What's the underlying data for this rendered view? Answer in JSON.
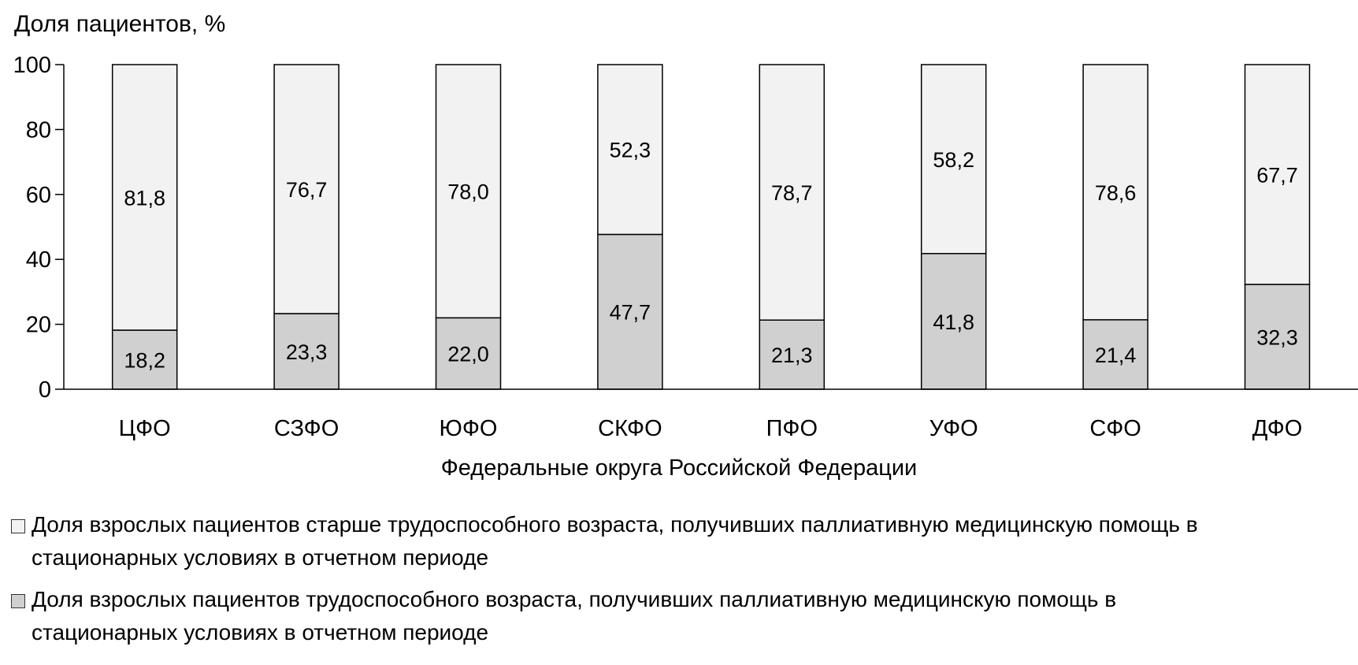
{
  "chart_data": {
    "type": "bar",
    "stacked": true,
    "ylabel": "Доля пациентов, %",
    "xlabel": "Федеральные округа Российской Федерации",
    "ylim": [
      0,
      100
    ],
    "yticks": [
      0,
      20,
      40,
      60,
      80,
      100
    ],
    "categories": [
      "ЦФО",
      "СЗФО",
      "ЮФО",
      "СКФО",
      "ПФО",
      "УФО",
      "СФО",
      "ДФО"
    ],
    "series": [
      {
        "name": "Доля взрослых пациентов трудоспособного возраста,  получивших паллиативную медицинскую помощь в стационарных условиях в отчетном периоде",
        "values": [
          18.2,
          23.3,
          22.0,
          47.7,
          21.3,
          41.8,
          21.4,
          32.3
        ],
        "labels": [
          "18,2",
          "23,3",
          "22,0",
          "47,7",
          "21,3",
          "41,8",
          "21,4",
          "32,3"
        ],
        "color": "#d0d0d0"
      },
      {
        "name": "Доля взрослых пациентов старше трудоспособного возраста,  получивших паллиативную медицинскую помощь в стационарных условиях в отчетном периоде",
        "values": [
          81.8,
          76.7,
          78.0,
          52.3,
          78.7,
          58.2,
          78.6,
          67.7
        ],
        "labels": [
          "81,8",
          "76,7",
          "78,0",
          "52,3",
          "78,7",
          "58,2",
          "78,6",
          "67,7"
        ],
        "color": "#f2f2f2"
      }
    ],
    "grid": false,
    "legend_position": "bottom"
  },
  "legend": [
    {
      "line1": "Доля взрослых пациентов старше трудоспособного возраста,  получивших паллиативную медицинскую помощь в",
      "line2": "стационарных условиях в отчетном периоде"
    },
    {
      "line1": "Доля взрослых пациентов трудоспособного возраста,  получивших паллиативную медицинскую помощь в",
      "line2": "стационарных условиях в отчетном периоде"
    }
  ]
}
